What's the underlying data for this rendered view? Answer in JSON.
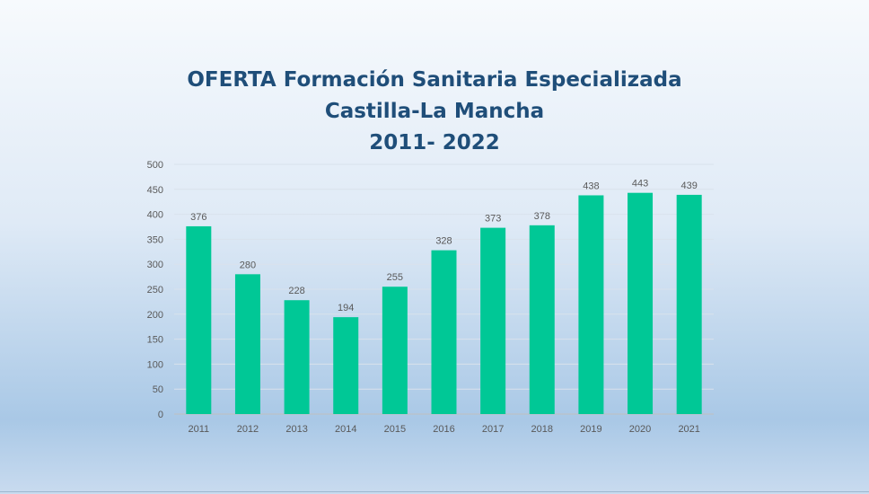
{
  "chart_data": {
    "type": "bar",
    "title_lines": [
      "OFERTA Formación Sanitaria Especializada",
      "Castilla-La Mancha",
      "2011- 2022"
    ],
    "categories": [
      "2011",
      "2012",
      "2013",
      "2014",
      "2015",
      "2016",
      "2017",
      "2018",
      "2019",
      "2020",
      "2021"
    ],
    "values": [
      376,
      280,
      228,
      194,
      255,
      328,
      373,
      378,
      438,
      443,
      439
    ],
    "ylim": [
      0,
      500
    ],
    "yticks": [
      0,
      50,
      100,
      150,
      200,
      250,
      300,
      350,
      400,
      450,
      500
    ],
    "grid": true,
    "bar_color": "#00c896",
    "data_labels": true
  }
}
